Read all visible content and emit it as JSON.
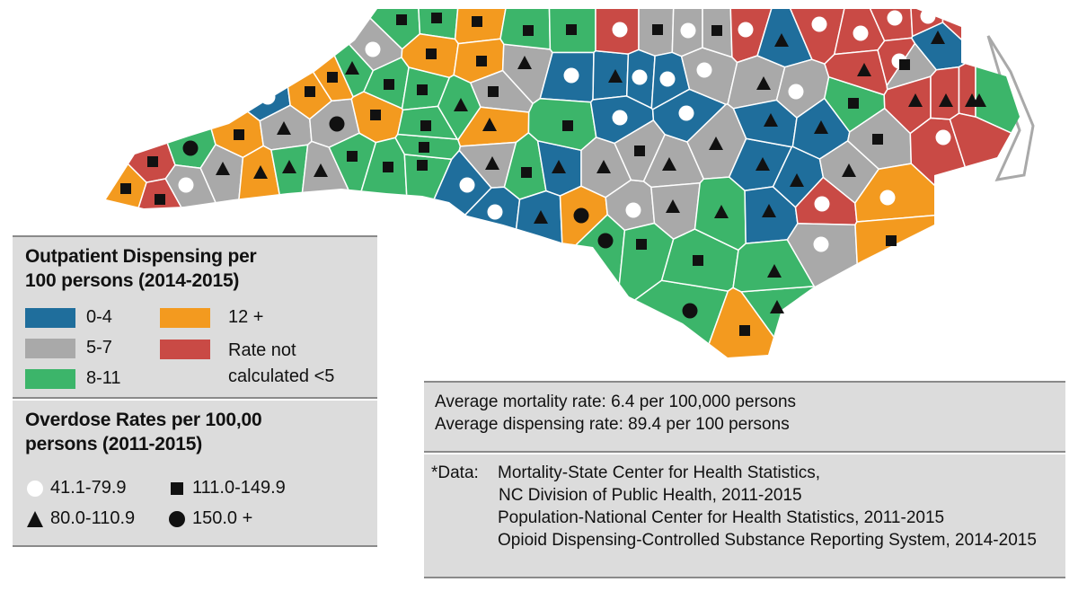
{
  "colors": {
    "blue": "#1f6e9c",
    "gray": "#a9a9a9",
    "green": "#3cb56a",
    "orange": "#f39a1f",
    "red": "#c94a45",
    "panel": "#dcdcdc"
  },
  "legend_dispensing": {
    "title_line1": "Outpatient Dispensing per",
    "title_line2": "100 persons (2014-2015)",
    "items": [
      {
        "label": "0-4",
        "color": "#1f6e9c"
      },
      {
        "label": "5-7",
        "color": "#a9a9a9"
      },
      {
        "label": "8-11",
        "color": "#3cb56a"
      },
      {
        "label": "12 +",
        "color": "#f39a1f"
      },
      {
        "label_line1": "Rate not",
        "label_line2": "calculated <5",
        "color": "#c94a45"
      }
    ]
  },
  "legend_overdose": {
    "title_line1": "Overdose Rates per 100,00",
    "title_line2": "persons (2011-2015)",
    "items": [
      {
        "symbol": "circle-open",
        "label": "41.1-79.9"
      },
      {
        "symbol": "triangle",
        "label": "80.0-110.9"
      },
      {
        "symbol": "square",
        "label": "111.0-149.9"
      },
      {
        "symbol": "circle-filled",
        "label": "150.0 +"
      }
    ]
  },
  "averages": {
    "mortality": "Average mortality rate: 6.4 per 100,000 persons",
    "dispensing": "Average dispensing rate: 89.4 per 100 persons"
  },
  "data_note": {
    "prefix": "*Data:",
    "line1": "Mortality-State Center for Health Statistics,",
    "line2": "NC Division of Public Health, 2011-2015",
    "line3": "Population-National Center for Health Statistics, 2011-2015",
    "line4": "Opioid Dispensing-Controlled Substance Reporting System, 2014-2015"
  }
}
